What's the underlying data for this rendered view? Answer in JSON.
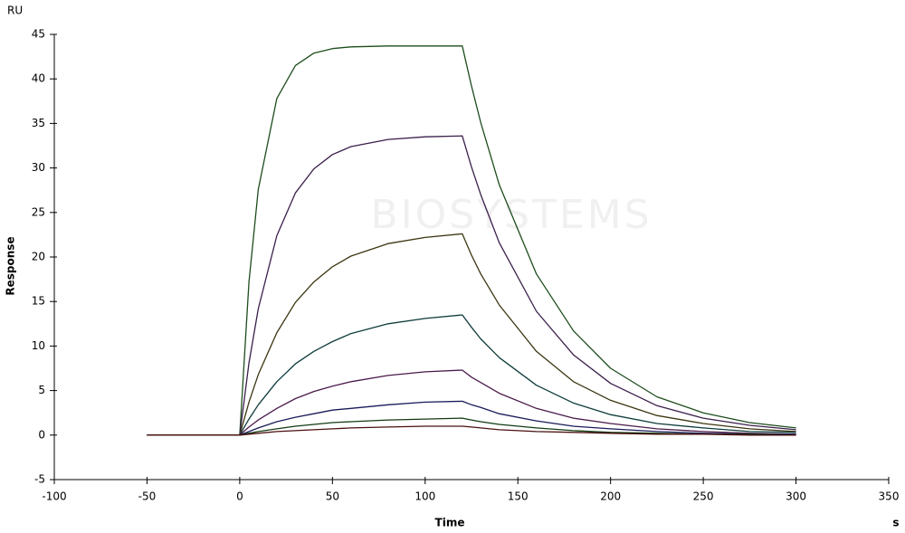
{
  "chart_data": {
    "type": "line",
    "y_unit": "RU",
    "ylabel": "Response",
    "xlabel": "Time",
    "x_unit": "s",
    "watermark": "BIOSYSTEMS",
    "xlim": [
      -100,
      350
    ],
    "xticks": [
      -100,
      -50,
      0,
      50,
      100,
      150,
      200,
      250,
      300,
      350
    ],
    "ylim": [
      -5,
      45
    ],
    "yticks": [
      -5,
      0,
      5,
      10,
      15,
      20,
      25,
      30,
      35,
      40,
      45
    ],
    "x": [
      -50,
      -25,
      0,
      5,
      10,
      20,
      30,
      40,
      50,
      60,
      80,
      100,
      120,
      125,
      130,
      140,
      160,
      180,
      200,
      225,
      250,
      275,
      300
    ],
    "series": [
      {
        "color": "#1d4d1d",
        "values": [
          0,
          0,
          0,
          17.2,
          27.6,
          37.8,
          41.5,
          42.9,
          43.4,
          43.6,
          43.7,
          43.7,
          43.7,
          39.2,
          35.1,
          28.1,
          18.1,
          11.7,
          7.5,
          4.3,
          2.5,
          1.4,
          0.8
        ]
      },
      {
        "color": "#3a1f4a",
        "values": [
          0,
          0,
          0,
          8.1,
          14.2,
          22.4,
          27.2,
          29.9,
          31.5,
          32.4,
          33.2,
          33.5,
          33.6,
          30.1,
          27.0,
          21.6,
          13.9,
          9.0,
          5.8,
          3.3,
          1.9,
          1.1,
          0.6
        ]
      },
      {
        "color": "#3b3510",
        "values": [
          0,
          0,
          0,
          3.7,
          6.8,
          11.5,
          14.9,
          17.2,
          18.9,
          20.1,
          21.5,
          22.2,
          22.6,
          20.2,
          18.1,
          14.6,
          9.4,
          6.0,
          3.9,
          2.2,
          1.3,
          0.7,
          0.4
        ]
      },
      {
        "color": "#0f3b3b",
        "values": [
          0,
          0,
          0,
          1.8,
          3.4,
          6.0,
          8.0,
          9.4,
          10.5,
          11.4,
          12.5,
          13.1,
          13.5,
          12.1,
          10.8,
          8.7,
          5.6,
          3.6,
          2.3,
          1.3,
          0.8,
          0.4,
          0.3
        ]
      },
      {
        "color": "#4a1a4a",
        "values": [
          0,
          0,
          0,
          0.9,
          1.7,
          3.0,
          4.1,
          4.9,
          5.5,
          6.0,
          6.7,
          7.1,
          7.3,
          6.5,
          5.9,
          4.7,
          3.0,
          1.9,
          1.3,
          0.7,
          0.4,
          0.2,
          0.1
        ]
      },
      {
        "color": "#1a1a5a",
        "values": [
          0,
          0,
          0,
          0.4,
          0.8,
          1.5,
          2.0,
          2.4,
          2.8,
          3.0,
          3.4,
          3.7,
          3.8,
          3.4,
          3.1,
          2.4,
          1.6,
          1.0,
          0.7,
          0.4,
          0.2,
          0.1,
          0.1
        ]
      },
      {
        "color": "#123a12",
        "values": [
          0,
          0,
          0,
          0.2,
          0.4,
          0.7,
          1.0,
          1.2,
          1.4,
          1.5,
          1.7,
          1.8,
          1.9,
          1.7,
          1.5,
          1.2,
          0.8,
          0.5,
          0.3,
          0.2,
          0.1,
          0.1,
          0.0
        ]
      },
      {
        "color": "#4a1010",
        "values": [
          0,
          0,
          0,
          0.1,
          0.2,
          0.4,
          0.5,
          0.6,
          0.7,
          0.8,
          0.9,
          1.0,
          1.0,
          0.9,
          0.8,
          0.6,
          0.4,
          0.3,
          0.2,
          0.1,
          0.1,
          0.0,
          0.0
        ]
      }
    ]
  }
}
